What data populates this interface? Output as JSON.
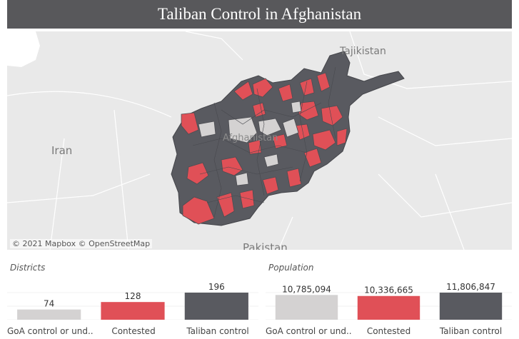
{
  "header": {
    "title": "Taliban Control in Afghanistan"
  },
  "map": {
    "attribution": "© 2021 Mapbox © OpenStreetMap",
    "labels": {
      "tajikistan": "Tajikistan",
      "iran": "Iran",
      "afghanistan": "Afghanistan",
      "pakistan": "Pakistan"
    },
    "colors": {
      "background": "#e9e9e9",
      "taliban": "#595a60",
      "contested": "#e05057",
      "goa": "#d4d2d2"
    }
  },
  "chart_data": [
    {
      "type": "bar",
      "title": "Districts",
      "categories": [
        "GoA control or und..",
        "Contested",
        "Taliban control"
      ],
      "values": [
        74,
        128,
        196
      ],
      "value_labels": [
        "74",
        "128",
        "196"
      ],
      "ylim": [
        0,
        196
      ],
      "colors": [
        "#d4d2d2",
        "#e05057",
        "#595a60"
      ]
    },
    {
      "type": "bar",
      "title": "Population",
      "categories": [
        "GoA control or und..",
        "Contested",
        "Taliban control"
      ],
      "values": [
        10785094,
        10336665,
        11806847
      ],
      "value_labels": [
        "10,785,094",
        "10,336,665",
        "11,806,847"
      ],
      "ylim": [
        0,
        11806847
      ],
      "colors": [
        "#d4d2d2",
        "#e05057",
        "#595a60"
      ]
    }
  ]
}
